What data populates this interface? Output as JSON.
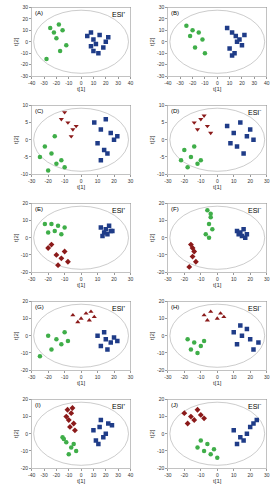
{
  "chart_data": [
    {
      "type": "scatter",
      "title": "(A)",
      "annotations": [
        "ESI⁺"
      ],
      "x_label": "t[1]",
      "y_label": "t[2]",
      "xlim": [
        -40,
        40
      ],
      "xticks": [
        -40,
        -30,
        -20,
        -10,
        0,
        10,
        20,
        30,
        40
      ],
      "ylim": [
        -30,
        30
      ],
      "yticks": [
        -30,
        -20,
        -10,
        0,
        10,
        20,
        30
      ],
      "grid": false,
      "series": [
        {
          "color": "#3fae49",
          "marker": "circle",
          "x": [
            -25,
            -22,
            -18,
            -20,
            -15,
            -12,
            -17,
            -28
          ],
          "y": [
            12,
            8,
            15,
            3,
            10,
            -3,
            -8,
            -15
          ]
        },
        {
          "color": "#1f3c88",
          "marker": "square",
          "x": [
            5,
            8,
            10,
            12,
            15,
            18,
            20,
            10,
            14,
            22,
            8
          ],
          "y": [
            5,
            8,
            2,
            -2,
            6,
            -5,
            0,
            -8,
            -10,
            4,
            -4
          ]
        }
      ]
    },
    {
      "type": "scatter",
      "title": "(B)",
      "annotations": [],
      "x_label": "t[1]",
      "y_label": "t[2]",
      "xlim": [
        -40,
        40
      ],
      "xticks": [
        -40,
        -30,
        -20,
        -10,
        0,
        10,
        20,
        30,
        40
      ],
      "ylim": [
        -30,
        30
      ],
      "yticks": [
        -30,
        -20,
        -10,
        0,
        10,
        20,
        30
      ],
      "grid": false,
      "series": [
        {
          "color": "#3fae49",
          "marker": "circle",
          "x": [
            -25,
            -20,
            -22,
            -15,
            -12,
            -18,
            -10
          ],
          "y": [
            14,
            10,
            5,
            8,
            2,
            -5,
            -10
          ]
        },
        {
          "color": "#1f3c88",
          "marker": "square",
          "x": [
            8,
            12,
            15,
            18,
            20,
            10,
            14,
            22,
            16,
            12
          ],
          "y": [
            12,
            8,
            5,
            2,
            -3,
            -6,
            -10,
            6,
            0,
            -12
          ]
        }
      ]
    },
    {
      "type": "scatter",
      "title": "(C)",
      "annotations": [],
      "x_label": "t[1]",
      "y_label": "t[2]",
      "xlim": [
        -30,
        30
      ],
      "xticks": [
        -30,
        -20,
        -10,
        0,
        10,
        20,
        30
      ],
      "ylim": [
        -10,
        10
      ],
      "yticks": [
        -10,
        -5,
        0,
        5,
        10
      ],
      "grid": false,
      "series": [
        {
          "color": "#3fae49",
          "marker": "circle",
          "x": [
            -22,
            -18,
            -15,
            -20,
            -12,
            -25,
            -10,
            -16
          ],
          "y": [
            -2,
            -4,
            -7,
            -9,
            -6,
            -5,
            -8,
            1
          ]
        },
        {
          "color": "#8b1a1a",
          "marker": "triangle-down",
          "x": [
            -12,
            -8,
            -5,
            -10,
            -3,
            -6
          ],
          "y": [
            6,
            5,
            3,
            8,
            4,
            1
          ]
        },
        {
          "color": "#1f3c88",
          "marker": "square",
          "x": [
            8,
            12,
            15,
            18,
            10,
            14,
            20,
            22,
            12,
            16
          ],
          "y": [
            5,
            3,
            6,
            2,
            -1,
            -3,
            0,
            1,
            -6,
            -4
          ]
        }
      ]
    },
    {
      "type": "scatter",
      "title": "(D)",
      "annotations": [
        "ESI⁻"
      ],
      "x_label": "t[1]",
      "y_label": "t[2]",
      "xlim": [
        -30,
        30
      ],
      "xticks": [
        -30,
        -20,
        -10,
        0,
        10,
        20,
        30
      ],
      "ylim": [
        -10,
        10
      ],
      "yticks": [
        -10,
        -5,
        0,
        5,
        10
      ],
      "grid": false,
      "series": [
        {
          "color": "#3fae49",
          "marker": "circle",
          "x": [
            -20,
            -16,
            -12,
            -18,
            -10,
            -14,
            -22
          ],
          "y": [
            -3,
            -5,
            -7,
            -8,
            -6,
            -2,
            -6
          ]
        },
        {
          "color": "#8b1a1a",
          "marker": "triangle-down",
          "x": [
            -14,
            -10,
            -6,
            -12,
            -4,
            -8
          ],
          "y": [
            5,
            6,
            4,
            3,
            2,
            7
          ]
        },
        {
          "color": "#1f3c88",
          "marker": "square",
          "x": [
            6,
            10,
            14,
            18,
            12,
            16,
            20,
            8,
            22
          ],
          "y": [
            4,
            2,
            5,
            1,
            -2,
            -4,
            3,
            -1,
            0
          ]
        }
      ]
    },
    {
      "type": "scatter",
      "title": "(E)",
      "annotations": [
        "ESI⁺"
      ],
      "x_label": "t[1]",
      "y_label": "t[2]",
      "xlim": [
        -30,
        30
      ],
      "xticks": [
        -30,
        -20,
        -10,
        0,
        10,
        20,
        30
      ],
      "ylim": [
        -20,
        20
      ],
      "yticks": [
        -20,
        -10,
        0,
        10,
        20
      ],
      "grid": false,
      "series": [
        {
          "color": "#3fae49",
          "marker": "circle",
          "x": [
            -22,
            -18,
            -14,
            -10,
            -16,
            -20,
            -12
          ],
          "y": [
            8,
            8,
            7,
            6,
            4,
            3,
            2
          ]
        },
        {
          "color": "#8b1a1a",
          "marker": "diamond",
          "x": [
            -20,
            -15,
            -12,
            -8,
            -14,
            -10,
            -18
          ],
          "y": [
            -6,
            -10,
            -12,
            -14,
            -16,
            -8,
            -4
          ]
        },
        {
          "color": "#1f3c88",
          "marker": "square",
          "x": [
            12,
            15,
            18,
            14,
            16,
            17,
            13,
            19
          ],
          "y": [
            6,
            5,
            4,
            3,
            2,
            7,
            1,
            4
          ]
        }
      ]
    },
    {
      "type": "scatter",
      "title": "(F)",
      "annotations": [
        "ESI⁻"
      ],
      "x_label": "t[1]",
      "y_label": "t[2]",
      "xlim": [
        -30,
        30
      ],
      "xticks": [
        -30,
        -20,
        -10,
        0,
        10,
        20,
        30
      ],
      "ylim": [
        -20,
        20
      ],
      "yticks": [
        -20,
        -10,
        0,
        10,
        20
      ],
      "grid": false,
      "series": [
        {
          "color": "#3fae49",
          "marker": "circle",
          "x": [
            -6,
            -4,
            -5,
            -3,
            -7,
            -5,
            -4
          ],
          "y": [
            16,
            12,
            8,
            5,
            2,
            0,
            14
          ]
        },
        {
          "color": "#8b1a1a",
          "marker": "diamond",
          "x": [
            -16,
            -14,
            -15,
            -13,
            -17,
            -15
          ],
          "y": [
            -4,
            -8,
            -11,
            -14,
            -17,
            -6
          ]
        },
        {
          "color": "#1f3c88",
          "marker": "square",
          "x": [
            12,
            14,
            16,
            18,
            15,
            17,
            13
          ],
          "y": [
            4,
            3,
            5,
            2,
            1,
            0,
            2
          ]
        }
      ]
    },
    {
      "type": "scatter",
      "title": "(G)",
      "annotations": [
        "ESI⁺"
      ],
      "x_label": "t[1]",
      "y_label": "t[2]",
      "xlim": [
        -30,
        30
      ],
      "xticks": [
        -30,
        -20,
        -10,
        0,
        10,
        20,
        30
      ],
      "ylim": [
        -20,
        20
      ],
      "yticks": [
        -20,
        -10,
        0,
        10,
        20
      ],
      "grid": false,
      "series": [
        {
          "color": "#3fae49",
          "marker": "circle",
          "x": [
            -20,
            -15,
            -12,
            -8,
            -18,
            -10,
            -25
          ],
          "y": [
            0,
            -2,
            -5,
            -3,
            -8,
            2,
            -12
          ]
        },
        {
          "color": "#8b1a1a",
          "marker": "triangle-up",
          "x": [
            -5,
            0,
            3,
            5,
            8,
            -2,
            6
          ],
          "y": [
            12,
            10,
            13,
            9,
            11,
            8,
            14
          ]
        },
        {
          "color": "#1f3c88",
          "marker": "square",
          "x": [
            10,
            15,
            18,
            20,
            12,
            16,
            22,
            14
          ],
          "y": [
            0,
            -2,
            -4,
            -1,
            -6,
            -8,
            -3,
            2
          ]
        }
      ]
    },
    {
      "type": "scatter",
      "title": "(H)",
      "annotations": [
        "ESI⁻"
      ],
      "x_label": "t[1]",
      "y_label": "t[2]",
      "xlim": [
        -30,
        30
      ],
      "xticks": [
        -30,
        -20,
        -10,
        0,
        10,
        20,
        30
      ],
      "ylim": [
        -20,
        20
      ],
      "yticks": [
        -20,
        -10,
        0,
        10,
        20
      ],
      "grid": false,
      "series": [
        {
          "color": "#3fae49",
          "marker": "circle",
          "x": [
            -18,
            -14,
            -10,
            -16,
            -12,
            -8
          ],
          "y": [
            -2,
            -4,
            -6,
            -8,
            -10,
            -3
          ]
        },
        {
          "color": "#8b1a1a",
          "marker": "triangle-up",
          "x": [
            -8,
            -4,
            0,
            2,
            -6,
            4
          ],
          "y": [
            12,
            14,
            10,
            13,
            9,
            11
          ]
        },
        {
          "color": "#1f3c88",
          "marker": "square",
          "x": [
            10,
            15,
            20,
            12,
            18,
            22,
            25,
            14
          ],
          "y": [
            2,
            0,
            -2,
            -5,
            4,
            -8,
            -4,
            6
          ]
        }
      ]
    },
    {
      "type": "scatter",
      "title": "(I)",
      "annotations": [
        "ESI⁺"
      ],
      "x_label": "t[1]",
      "y_label": "t[2]",
      "xlim": [
        -40,
        40
      ],
      "xticks": [
        -40,
        -30,
        -20,
        -10,
        0,
        10,
        20,
        30,
        40
      ],
      "ylim": [
        -20,
        20
      ],
      "yticks": [
        -20,
        -10,
        0,
        10,
        20
      ],
      "grid": false,
      "series": [
        {
          "color": "#3fae49",
          "marker": "circle",
          "x": [
            -15,
            -12,
            -8,
            -4,
            -10,
            -6,
            -14
          ],
          "y": [
            -2,
            -5,
            -8,
            -10,
            -12,
            -6,
            -3
          ]
        },
        {
          "color": "#8b1a1a",
          "marker": "diamond",
          "x": [
            -12,
            -10,
            -8,
            -6,
            -9,
            -11,
            -5,
            -7
          ],
          "y": [
            10,
            8,
            12,
            6,
            4,
            14,
            2,
            15
          ]
        },
        {
          "color": "#1f3c88",
          "marker": "square",
          "x": [
            10,
            15,
            18,
            20,
            22,
            12,
            25,
            16,
            14
          ],
          "y": [
            2,
            4,
            -2,
            0,
            6,
            -4,
            5,
            8,
            -6
          ]
        }
      ]
    },
    {
      "type": "scatter",
      "title": "(J)",
      "annotations": [
        "ESI⁻"
      ],
      "x_label": "t[1]",
      "y_label": "t[2]",
      "xlim": [
        -30,
        30
      ],
      "xticks": [
        -30,
        -20,
        -10,
        0,
        10,
        20,
        30
      ],
      "ylim": [
        -20,
        20
      ],
      "yticks": [
        -20,
        -10,
        0,
        10,
        20
      ],
      "grid": false,
      "series": [
        {
          "color": "#3fae49",
          "marker": "circle",
          "x": [
            -12,
            -8,
            -4,
            -6,
            -10,
            0,
            -2
          ],
          "y": [
            -8,
            -10,
            -12,
            -6,
            -4,
            -14,
            -9
          ]
        },
        {
          "color": "#8b1a1a",
          "marker": "diamond",
          "x": [
            -20,
            -16,
            -12,
            -14,
            -18,
            -10,
            -8
          ],
          "y": [
            12,
            10,
            14,
            8,
            6,
            11,
            9
          ]
        },
        {
          "color": "#1f3c88",
          "marker": "square",
          "x": [
            10,
            14,
            18,
            20,
            22,
            16,
            24,
            12
          ],
          "y": [
            2,
            -2,
            0,
            4,
            6,
            -4,
            8,
            -6
          ]
        }
      ]
    }
  ]
}
